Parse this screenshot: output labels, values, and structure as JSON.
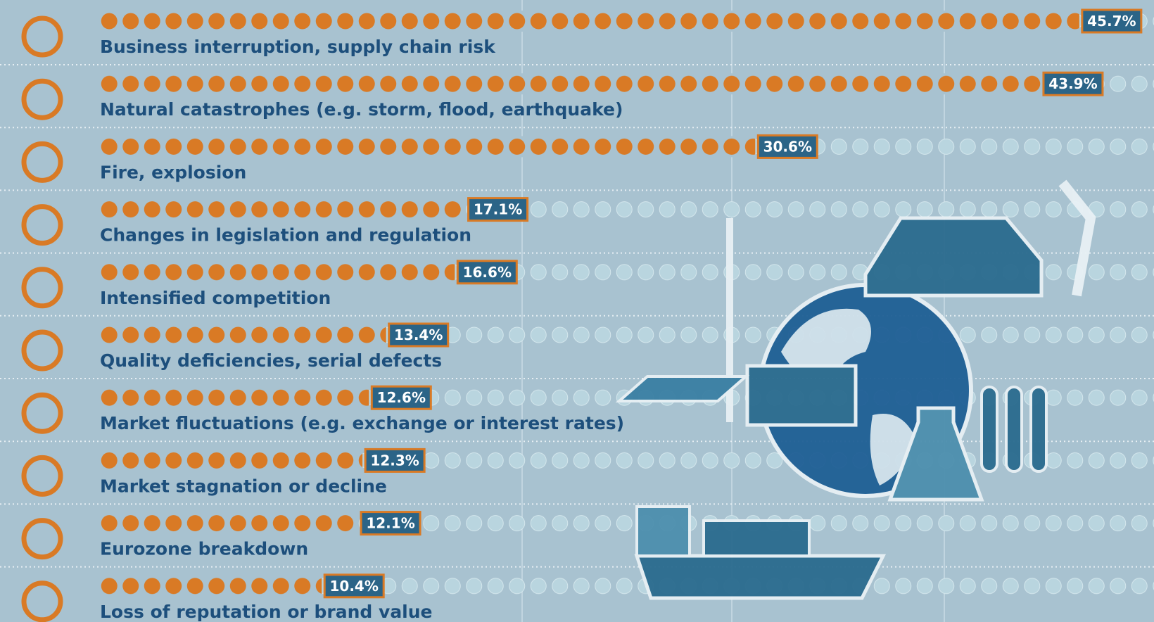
{
  "chart_data": {
    "type": "bar",
    "categories": [
      "Business interruption, supply chain risk",
      "Natural catastrophes (e.g. storm, flood, earthquake)",
      "Fire, explosion",
      "Changes in legislation and regulation",
      "Intensified competition",
      "Quality deficiencies, serial defects",
      "Market fluctuations (e.g. exchange or interest rates)",
      "Market stagnation or decline",
      "Eurozone breakdown",
      "Loss of reputation or brand value"
    ],
    "values": [
      45.7,
      43.9,
      30.6,
      17.1,
      16.6,
      13.4,
      12.6,
      12.3,
      12.1,
      10.4
    ],
    "value_labels": [
      "45.7%",
      "43.9%",
      "30.6%",
      "17.1%",
      "16.6%",
      "13.4%",
      "12.6%",
      "12.3%",
      "12.1%",
      "10.4%"
    ],
    "color": "#d97a25"
  }
}
